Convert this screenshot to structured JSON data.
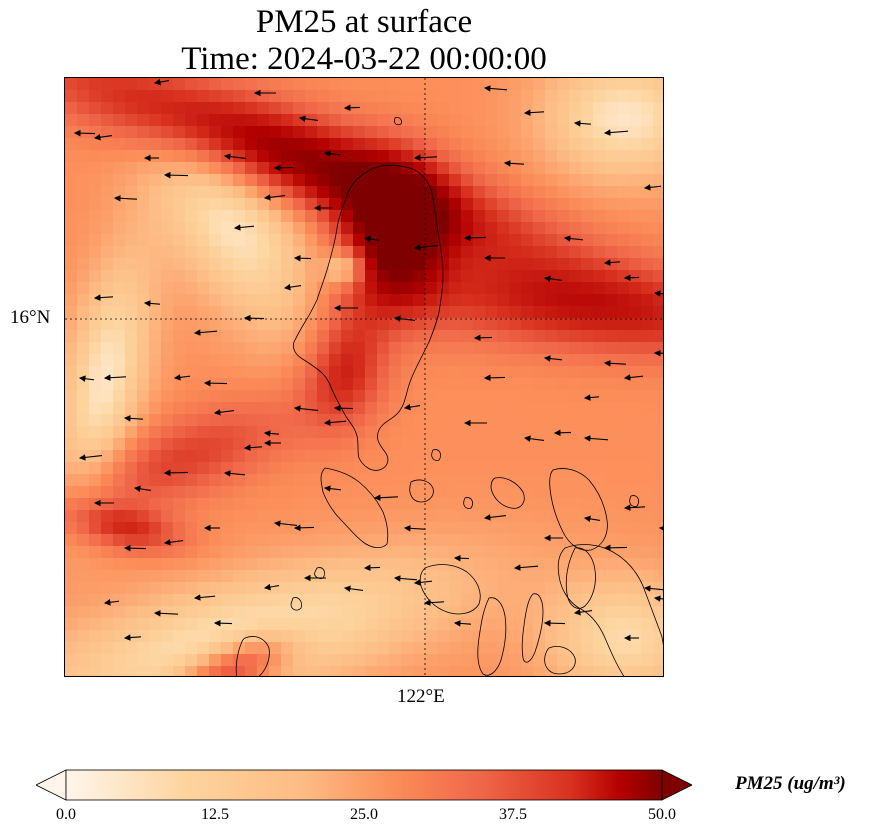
{
  "title": {
    "line1": "PM25 at surface",
    "line2": "Time: 2024-03-22 00:00:00"
  },
  "map": {
    "lat_label": "16°N",
    "lon_label": "122°E",
    "field": "PM25",
    "color_scale_stops": [
      "#fff5eb",
      "#fdd49e",
      "#fdbb84",
      "#fc8d59",
      "#ef6548",
      "#d7301f",
      "#b30000",
      "#7f0000"
    ],
    "coastline_color": "#000000",
    "wind_arrow_color": "#000000"
  },
  "colorbar": {
    "unit_label": "PM25 (ug/m³)",
    "min": 0.0,
    "max": 50.0,
    "ticks": [
      "0.0",
      "12.5",
      "25.0",
      "37.5",
      "50.0"
    ],
    "extend": "both"
  }
}
